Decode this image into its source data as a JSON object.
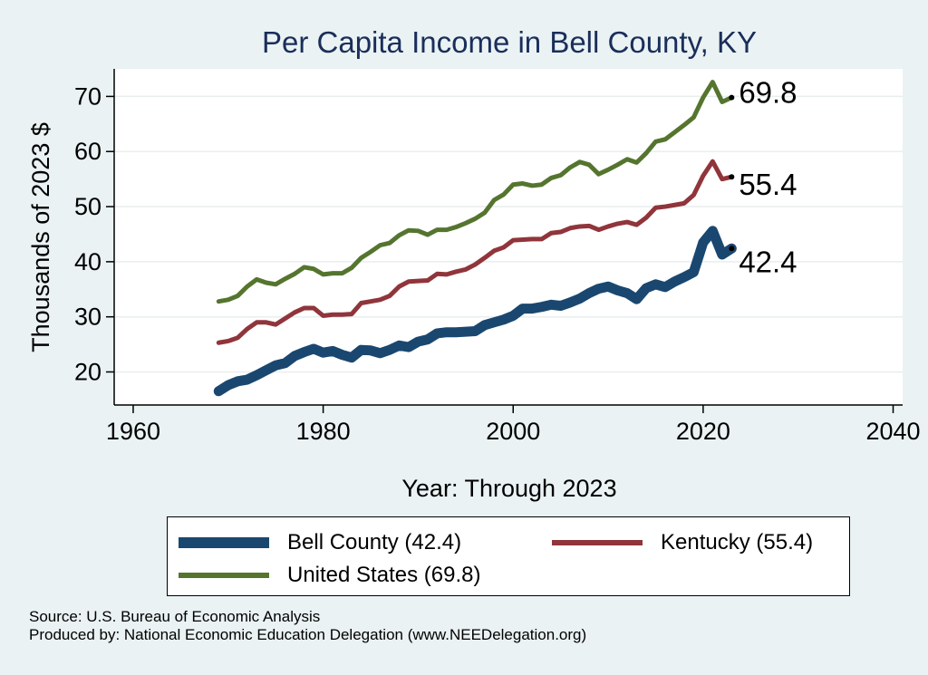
{
  "chart_data": {
    "type": "line",
    "title": "Per Capita Income in Bell County, KY",
    "xlabel": "Year: Through 2023",
    "ylabel": "Thousands of 2023 $",
    "xlim": [
      1958,
      2041
    ],
    "ylim": [
      14,
      75
    ],
    "xticks": [
      1960,
      1980,
      2000,
      2020,
      2040
    ],
    "yticks": [
      20,
      30,
      40,
      50,
      60,
      70
    ],
    "grid": true,
    "legend_position": "bottom",
    "series": [
      {
        "name": "Bell County (42.4)",
        "color": "#1a476f",
        "end_label": "42.4",
        "x": [
          1969,
          1970,
          1971,
          1972,
          1973,
          1974,
          1975,
          1976,
          1977,
          1978,
          1979,
          1980,
          1981,
          1982,
          1983,
          1984,
          1985,
          1986,
          1987,
          1988,
          1989,
          1990,
          1991,
          1992,
          1993,
          1994,
          1995,
          1996,
          1997,
          1998,
          1999,
          2000,
          2001,
          2002,
          2003,
          2004,
          2005,
          2006,
          2007,
          2008,
          2009,
          2010,
          2011,
          2012,
          2013,
          2014,
          2015,
          2016,
          2017,
          2018,
          2019,
          2020,
          2021,
          2022,
          2023
        ],
        "values": [
          16.5,
          17.6,
          18.3,
          18.6,
          19.4,
          20.3,
          21.2,
          21.6,
          22.9,
          23.6,
          24.2,
          23.5,
          23.8,
          23.1,
          22.6,
          24.0,
          23.9,
          23.4,
          24.0,
          24.8,
          24.5,
          25.5,
          25.9,
          27.0,
          27.2,
          27.2,
          27.3,
          27.4,
          28.5,
          29.0,
          29.5,
          30.2,
          31.5,
          31.5,
          31.8,
          32.2,
          32.0,
          32.6,
          33.3,
          34.3,
          35.1,
          35.5,
          34.8,
          34.3,
          33.2,
          35.2,
          35.9,
          35.4,
          36.4,
          37.2,
          38.1,
          43.5,
          45.6,
          41.3,
          42.4
        ]
      },
      {
        "name": "Kentucky (55.4)",
        "color": "#90353b",
        "end_label": "55.4",
        "x": [
          1969,
          1970,
          1971,
          1972,
          1973,
          1974,
          1975,
          1976,
          1977,
          1978,
          1979,
          1980,
          1981,
          1982,
          1983,
          1984,
          1985,
          1986,
          1987,
          1988,
          1989,
          1990,
          1991,
          1992,
          1993,
          1994,
          1995,
          1996,
          1997,
          1998,
          1999,
          2000,
          2001,
          2002,
          2003,
          2004,
          2005,
          2006,
          2007,
          2008,
          2009,
          2010,
          2011,
          2012,
          2013,
          2014,
          2015,
          2016,
          2017,
          2018,
          2019,
          2020,
          2021,
          2022,
          2023
        ],
        "values": [
          25.3,
          25.6,
          26.2,
          27.8,
          29.0,
          29.0,
          28.6,
          29.7,
          30.8,
          31.6,
          31.6,
          30.2,
          30.4,
          30.4,
          30.5,
          32.5,
          32.8,
          33.1,
          33.8,
          35.5,
          36.4,
          36.5,
          36.6,
          37.8,
          37.7,
          38.2,
          38.6,
          39.5,
          40.7,
          42.0,
          42.6,
          43.9,
          44.0,
          44.1,
          44.1,
          45.2,
          45.4,
          46.1,
          46.4,
          46.5,
          45.8,
          46.4,
          46.9,
          47.2,
          46.7,
          48.0,
          49.8,
          50.0,
          50.3,
          50.6,
          52.1,
          55.6,
          58.2,
          55.0,
          55.4
        ]
      },
      {
        "name": "United States (69.8)",
        "color": "#55752f",
        "end_label": "69.8",
        "x": [
          1969,
          1970,
          1971,
          1972,
          1973,
          1974,
          1975,
          1976,
          1977,
          1978,
          1979,
          1980,
          1981,
          1982,
          1983,
          1984,
          1985,
          1986,
          1987,
          1988,
          1989,
          1990,
          1991,
          1992,
          1993,
          1994,
          1995,
          1996,
          1997,
          1998,
          1999,
          2000,
          2001,
          2002,
          2003,
          2004,
          2005,
          2006,
          2007,
          2008,
          2009,
          2010,
          2011,
          2012,
          2013,
          2014,
          2015,
          2016,
          2017,
          2018,
          2019,
          2020,
          2021,
          2022,
          2023
        ],
        "values": [
          32.8,
          33.1,
          33.8,
          35.5,
          36.8,
          36.2,
          35.9,
          36.9,
          37.8,
          39.0,
          38.7,
          37.7,
          37.9,
          37.9,
          38.9,
          40.7,
          41.8,
          43.0,
          43.4,
          44.8,
          45.7,
          45.6,
          44.9,
          45.8,
          45.8,
          46.3,
          47.0,
          47.8,
          48.9,
          51.2,
          52.2,
          54.0,
          54.2,
          53.8,
          54.0,
          55.2,
          55.7,
          57.1,
          58.1,
          57.6,
          55.9,
          56.7,
          57.6,
          58.6,
          58.0,
          59.7,
          61.8,
          62.2,
          63.5,
          64.8,
          66.2,
          69.8,
          72.6,
          69.0,
          69.8
        ]
      }
    ]
  },
  "legend": {
    "items": [
      "Bell County (42.4)",
      "Kentucky (55.4)",
      "United States (69.8)"
    ]
  },
  "source": {
    "line1": "Source: U.S. Bureau of Economic Analysis",
    "line2": "Produced by: National Economic Education Delegation (www.NEEDelegation.org)"
  }
}
